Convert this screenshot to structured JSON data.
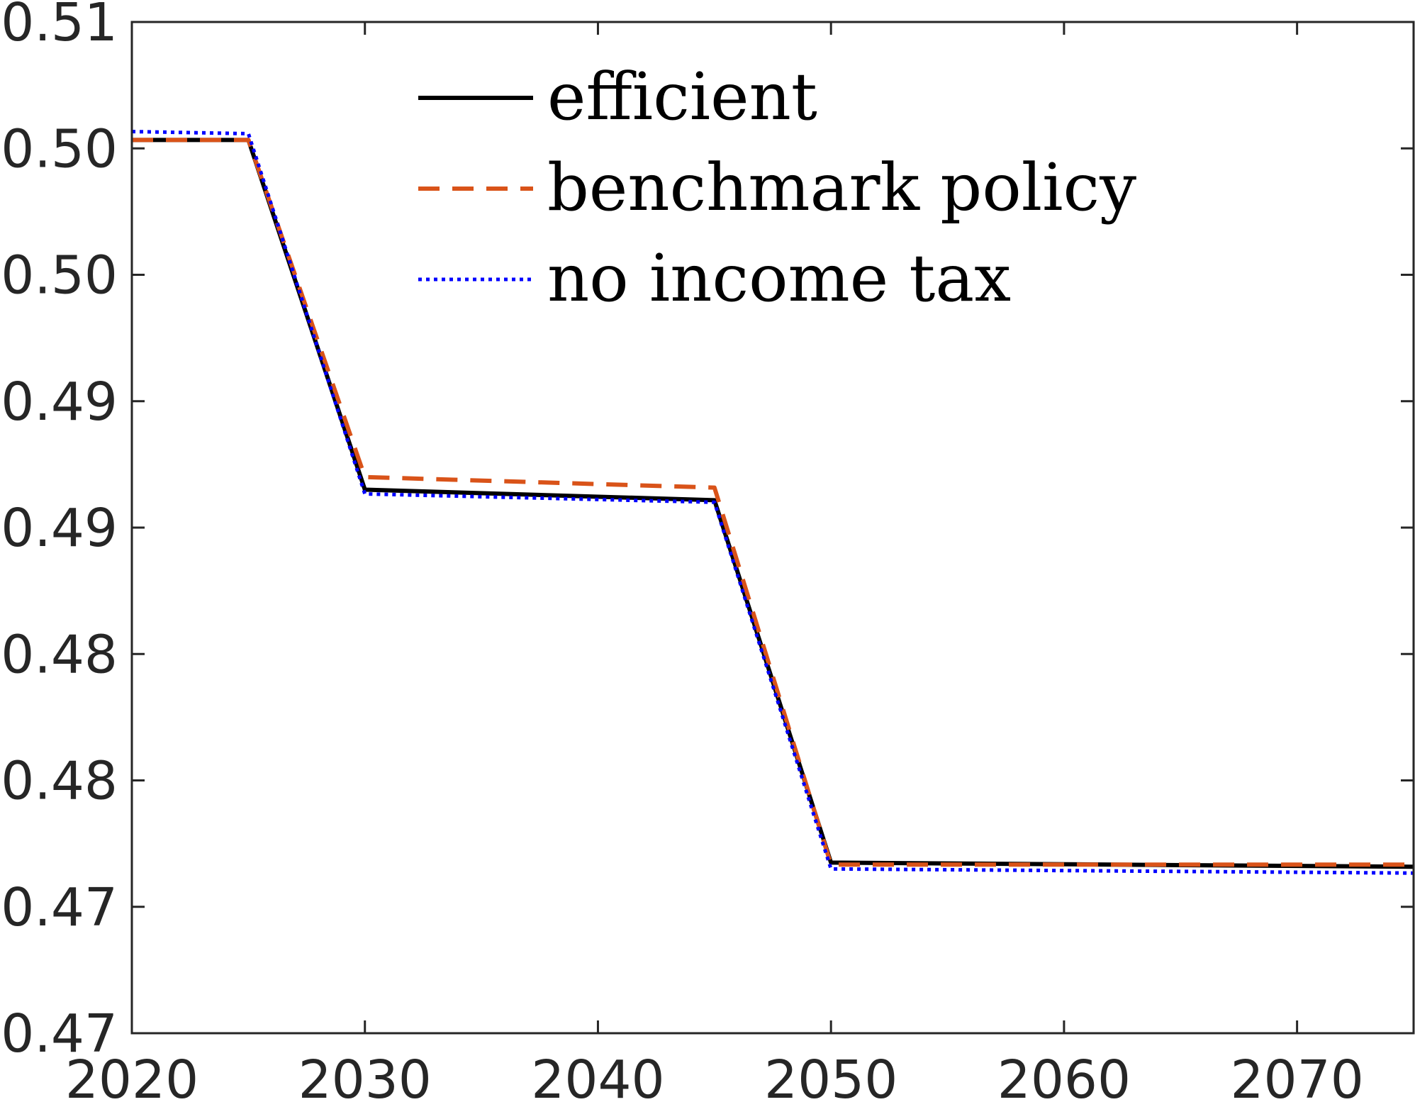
{
  "chart_data": {
    "type": "line",
    "x_ticks": [
      2020,
      2030,
      2040,
      2050,
      2060,
      2070
    ],
    "y_tick_labels": [
      "0.51",
      "0.50",
      "0.50",
      "0.49",
      "0.49",
      "0.48",
      "0.48",
      "0.47",
      "0.47"
    ],
    "xlim": [
      2020,
      2075
    ],
    "ylim": [
      0.466,
      0.514
    ],
    "grid": false,
    "legend_position": "top",
    "series": [
      {
        "name": "efficient",
        "color": "#000000",
        "dash": "solid",
        "x": [
          2020,
          2025,
          2030,
          2045,
          2050,
          2075
        ],
        "y": [
          0.5084,
          0.5084,
          0.4918,
          0.4913,
          0.4741,
          0.4739
        ]
      },
      {
        "name": "benchmark policy",
        "color": "#D95319",
        "dash": "dashed",
        "x": [
          2020,
          2025,
          2030,
          2045,
          2050,
          2075
        ],
        "y": [
          0.5084,
          0.5084,
          0.4924,
          0.4919,
          0.474,
          0.474
        ]
      },
      {
        "name": "no income tax",
        "color": "#0000FF",
        "dash": "dotted",
        "x": [
          2020,
          2025,
          2030,
          2045,
          2050,
          2075
        ],
        "y": [
          0.5088,
          0.5087,
          0.4916,
          0.4912,
          0.4738,
          0.4736
        ]
      }
    ]
  }
}
